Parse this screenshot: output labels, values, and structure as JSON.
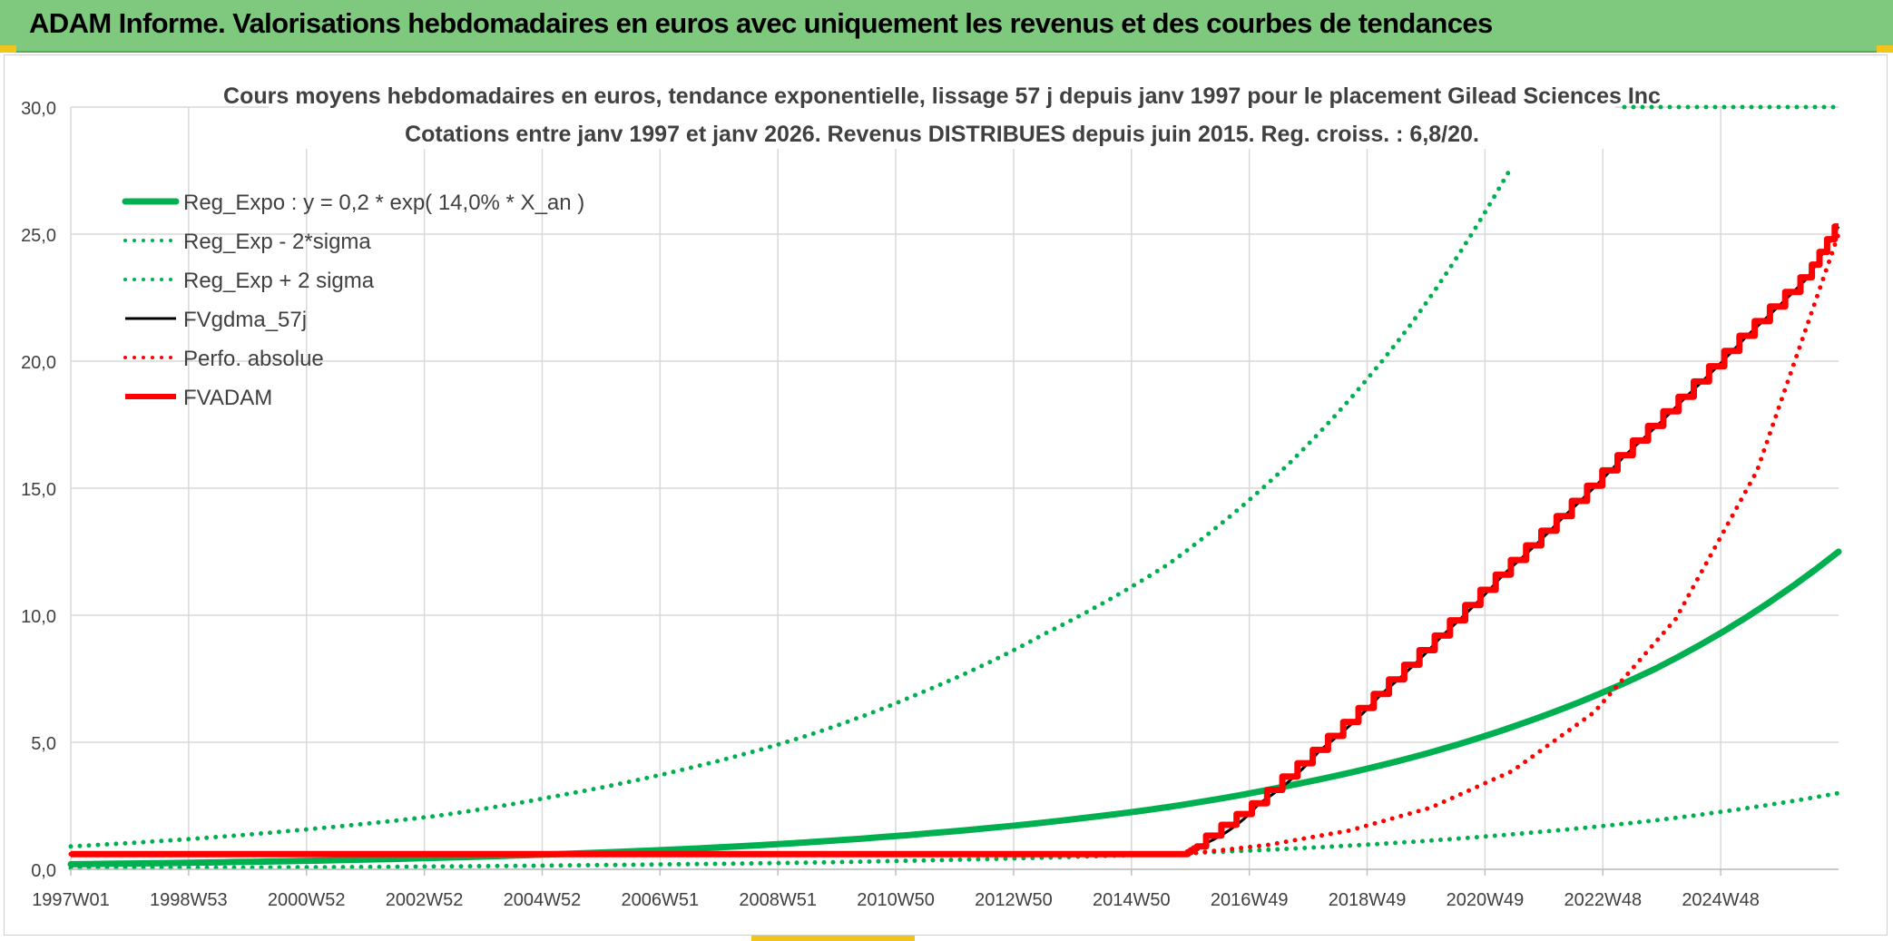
{
  "window": {
    "title": "ADAM Informe. Valorisations hebdomadaires en euros avec uniquement les revenus et des courbes de tendances"
  },
  "colors": {
    "banner": "#7fc97f",
    "green": "#00b050",
    "red": "#ff0000",
    "black": "#000000",
    "grid": "#d9d9d9",
    "title_text": "#404040"
  },
  "chart_data": {
    "type": "line",
    "title": "Cours moyens hebdomadaires en euros, tendance exponentielle, lissage 57 j depuis janv 1997 pour le placement Gilead Sciences Inc",
    "subtitle": "Cotations entre janv 1997 et janv 2026. Revenus DISTRIBUES depuis juin 2015. Reg. croiss. : 6,8/20.",
    "xlabel": "",
    "ylabel": "",
    "x_ticks": [
      "1997W01",
      "1998W53",
      "2000W52",
      "2002W52",
      "2004W52",
      "2006W51",
      "2008W51",
      "2010W50",
      "2012W50",
      "2014W50",
      "2016W49",
      "2018W49",
      "2020W49",
      "2022W48",
      "2024W48"
    ],
    "y_ticks": [
      "0,0",
      "5,0",
      "10,0",
      "15,0",
      "20,0",
      "25,0",
      "30,0"
    ],
    "ylim": [
      0,
      30
    ],
    "grid": true,
    "legend_position": "top-left",
    "series": [
      {
        "name": "Reg_Expo : y = 0,2 * exp( 14,0% *  X_an )",
        "style": "solid-thick",
        "color": "#00b050",
        "x": [
          1997,
          1999,
          2001,
          2003,
          2005,
          2007,
          2009,
          2011,
          2013,
          2015,
          2017,
          2019,
          2021,
          2023,
          2026
        ],
        "y": [
          0.2,
          0.26,
          0.34,
          0.45,
          0.6,
          0.79,
          1.05,
          1.4,
          1.85,
          2.45,
          3.3,
          4.4,
          5.9,
          7.9,
          12.5
        ]
      },
      {
        "name": "Reg_Exp - 2*sigma",
        "style": "dotted",
        "color": "#00b050",
        "x": [
          1997,
          1999,
          2001,
          2003,
          2005,
          2007,
          2009,
          2011,
          2013,
          2015,
          2017,
          2019,
          2021,
          2023,
          2026
        ],
        "y": [
          0.05,
          0.06,
          0.08,
          0.11,
          0.15,
          0.2,
          0.26,
          0.35,
          0.46,
          0.61,
          0.81,
          1.08,
          1.45,
          1.93,
          3.0
        ]
      },
      {
        "name": "Reg_Exp + 2 sigma",
        "style": "dotted",
        "color": "#00b050",
        "x": [
          1997,
          1999,
          2001,
          2003,
          2005,
          2007,
          2009,
          2011,
          2013,
          2015,
          2017,
          2019,
          2020.6
        ],
        "y": [
          0.9,
          1.2,
          1.6,
          2.1,
          2.9,
          3.9,
          5.2,
          7.0,
          9.3,
          12.0,
          16.0,
          21.5,
          27.5
        ]
      },
      {
        "name": "FVgdma_57j",
        "style": "solid",
        "color": "#000000",
        "x": [
          1997,
          2015.3,
          2015.5,
          2016.5,
          2017.5,
          2018.5,
          2019.5,
          2020.5,
          2021.5,
          2022.5,
          2023.5,
          2024.5,
          2025.5,
          2026
        ],
        "y": [
          0.6,
          0.6,
          0.9,
          2.6,
          4.7,
          6.9,
          9.2,
          11.6,
          13.9,
          16.3,
          18.6,
          21.0,
          23.3,
          25.3
        ]
      },
      {
        "name": "Perfo. absolue",
        "style": "dotted",
        "color": "#ff0000",
        "x": [
          1997,
          2015.3,
          2026
        ],
        "y": [
          0.6,
          0.6,
          25.0
        ]
      },
      {
        "name": "FVADAM",
        "style": "staircase-thick",
        "color": "#ff0000",
        "x": [
          1997,
          2015.3,
          2015.5,
          2016.5,
          2017.5,
          2018.5,
          2019.5,
          2020.5,
          2021.5,
          2022.5,
          2023.5,
          2024.5,
          2025.5,
          2026
        ],
        "y": [
          0.6,
          0.6,
          0.9,
          2.6,
          4.7,
          6.9,
          9.2,
          11.6,
          13.9,
          16.3,
          18.6,
          21.0,
          23.3,
          25.3
        ]
      }
    ]
  }
}
